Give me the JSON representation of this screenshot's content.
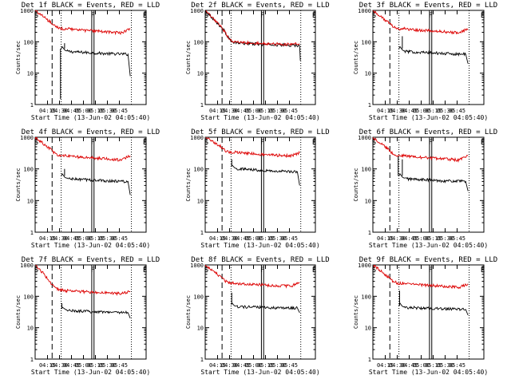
{
  "figure": {
    "background": "#ffffff",
    "axis_color": "#000000",
    "events_color": "#000000",
    "lld_color": "#dd0000"
  },
  "chart_data": [
    {
      "type": "line",
      "title": "Det 1f BLACK = Events, RED = LLD",
      "xlabel": "Start Time (13-Jun-02 04:05:40)",
      "ylabel": "Counts/sec",
      "x_ticks": [
        "04:15",
        "04:30",
        "04:45",
        "05:00",
        "05:15",
        "05:30",
        "05:45"
      ],
      "y_ticks": [
        "1",
        "10",
        "100",
        "1000"
      ],
      "xlim_min": [
        4,
        53
      ],
      "ylim": [
        1,
        1000
      ],
      "yscale": "log",
      "markers": [
        "S",
        "F",
        "E"
      ],
      "markers_min": [
        4.5,
        29.5,
        52.5
      ],
      "dashed_line_min": 11.5,
      "dotted_lines_min": [
        15.5,
        46.5,
        70
      ],
      "solid_lines_min": [
        29,
        30
      ],
      "series": [
        {
          "name": "Events",
          "color": "#000000",
          "x": [
            15.5,
            16,
            17,
            18,
            20,
            25,
            35,
            45,
            46
          ],
          "y": [
            60,
            70,
            55,
            50,
            48,
            46,
            42,
            40,
            8
          ],
          "spikes": [
            {
              "x": 15.2,
              "y": 1.5
            },
            {
              "x": 17,
              "y": 90
            }
          ]
        },
        {
          "name": "LLD",
          "color": "#dd0000",
          "x": [
            4,
            8,
            11,
            13,
            15,
            18,
            25,
            35,
            42,
            46
          ],
          "y": [
            1000,
            600,
            400,
            300,
            260,
            260,
            230,
            210,
            190,
            260
          ]
        }
      ]
    },
    {
      "type": "line",
      "title": "Det 2f BLACK = Events, RED = LLD",
      "xlabel": "Start Time (13-Jun-02 04:05:40)",
      "ylabel": "Counts/sec",
      "x_ticks": [
        "04:15",
        "04:30",
        "04:45",
        "05:00",
        "05:15",
        "05:30",
        "05:45"
      ],
      "y_ticks": [
        "1",
        "10",
        "100",
        "1000"
      ],
      "xlim_min": [
        4,
        53
      ],
      "ylim": [
        1,
        1000
      ],
      "yscale": "log",
      "markers": [
        "S",
        "F",
        "E"
      ],
      "markers_min": [
        4.5,
        29.5,
        52.5
      ],
      "dashed_line_min": 11.5,
      "dotted_lines_min": [
        15.5,
        46.5,
        70
      ],
      "solid_lines_min": [
        29,
        30
      ],
      "series": [
        {
          "name": "Events",
          "color": "#000000",
          "x": [
            4,
            8,
            12,
            14,
            16,
            20,
            30,
            40,
            46,
            46.3
          ],
          "y": [
            1000,
            500,
            250,
            150,
            95,
            90,
            82,
            78,
            75,
            25
          ],
          "spikes": []
        },
        {
          "name": "LLD",
          "color": "#dd0000",
          "x": [
            4,
            8,
            12,
            14,
            16,
            20,
            30,
            40,
            46
          ],
          "y": [
            1000,
            500,
            250,
            150,
            100,
            95,
            88,
            82,
            85
          ]
        }
      ]
    },
    {
      "type": "line",
      "title": "Det 3f BLACK = Events, RED = LLD",
      "xlabel": "Start Time (13-Jun-02 04:05:40)",
      "ylabel": "Counts/sec",
      "x_ticks": [
        "04:15",
        "04:30",
        "04:45",
        "05:00",
        "05:15",
        "05:30",
        "05:45"
      ],
      "y_ticks": [
        "1",
        "10",
        "100",
        "1000"
      ],
      "xlim_min": [
        4,
        53
      ],
      "ylim": [
        1,
        1000
      ],
      "yscale": "log",
      "markers": [
        "S",
        "F",
        "E"
      ],
      "markers_min": [
        4.5,
        29.5,
        52.5
      ],
      "dashed_line_min": 11.5,
      "dotted_lines_min": [
        15.5,
        46.5,
        70
      ],
      "solid_lines_min": [
        29,
        30
      ],
      "series": [
        {
          "name": "Events",
          "color": "#000000",
          "x": [
            15.5,
            16,
            17,
            18,
            20,
            25,
            35,
            45,
            46
          ],
          "y": [
            60,
            70,
            55,
            50,
            48,
            46,
            42,
            40,
            20
          ],
          "spikes": [
            {
              "x": 17,
              "y": 150
            }
          ]
        },
        {
          "name": "LLD",
          "color": "#dd0000",
          "x": [
            4,
            8,
            11,
            13,
            15,
            18,
            25,
            35,
            42,
            46
          ],
          "y": [
            1000,
            600,
            400,
            300,
            260,
            260,
            230,
            210,
            190,
            260
          ]
        }
      ]
    },
    {
      "type": "line",
      "title": "Det 4f BLACK = Events, RED = LLD",
      "xlabel": "Start Time (13-Jun-02 04:05:40)",
      "ylabel": "Counts/sec",
      "x_ticks": [
        "04:15",
        "04:30",
        "04:45",
        "05:00",
        "05:15",
        "05:30",
        "05:45"
      ],
      "y_ticks": [
        "1",
        "10",
        "100",
        "1000"
      ],
      "xlim_min": [
        4,
        53
      ],
      "ylim": [
        1,
        1000
      ],
      "yscale": "log",
      "markers": [
        "S",
        "F",
        "E"
      ],
      "markers_min": [
        4.5,
        29.5,
        52.5
      ],
      "dashed_line_min": 11.5,
      "dotted_lines_min": [
        15.5,
        46.5,
        70
      ],
      "solid_lines_min": [
        29,
        30
      ],
      "series": [
        {
          "name": "Events",
          "color": "#000000",
          "x": [
            15.5,
            16,
            17,
            18,
            20,
            25,
            35,
            45,
            46
          ],
          "y": [
            60,
            70,
            55,
            50,
            48,
            46,
            42,
            40,
            15
          ],
          "spikes": [
            {
              "x": 17,
              "y": 100
            }
          ]
        },
        {
          "name": "LLD",
          "color": "#dd0000",
          "x": [
            4,
            8,
            11,
            13,
            15,
            18,
            25,
            35,
            42,
            46
          ],
          "y": [
            1000,
            600,
            400,
            300,
            260,
            260,
            230,
            210,
            190,
            260
          ]
        }
      ]
    },
    {
      "type": "line",
      "title": "Det 5f BLACK = Events, RED = LLD",
      "xlabel": "Start Time (13-Jun-02 04:05:40)",
      "ylabel": "Counts/sec",
      "x_ticks": [
        "04:15",
        "04:30",
        "04:45",
        "05:00",
        "05:15",
        "05:30",
        "05:45"
      ],
      "y_ticks": [
        "1",
        "10",
        "100",
        "1000"
      ],
      "xlim_min": [
        4,
        53
      ],
      "ylim": [
        1,
        1000
      ],
      "yscale": "log",
      "markers": [
        "S",
        "F",
        "E"
      ],
      "markers_min": [
        4.5,
        29.5,
        52.5
      ],
      "dashed_line_min": 11.5,
      "dotted_lines_min": [
        15.5,
        46.5,
        70
      ],
      "solid_lines_min": [
        29,
        30
      ],
      "series": [
        {
          "name": "Events",
          "color": "#000000",
          "x": [
            15.5,
            16,
            17,
            18,
            20,
            25,
            35,
            45,
            46
          ],
          "y": [
            120,
            130,
            110,
            100,
            100,
            95,
            85,
            80,
            30
          ],
          "spikes": [
            {
              "x": 15.8,
              "y": 200
            }
          ]
        },
        {
          "name": "LLD",
          "color": "#dd0000",
          "x": [
            4,
            8,
            11,
            13,
            15,
            18,
            25,
            35,
            42,
            46
          ],
          "y": [
            1000,
            700,
            500,
            380,
            340,
            340,
            300,
            270,
            260,
            320
          ]
        }
      ]
    },
    {
      "type": "line",
      "title": "Det 6f BLACK = Events, RED = LLD",
      "xlabel": "Start Time (13-Jun-02 04:05:40)",
      "ylabel": "Counts/sec",
      "x_ticks": [
        "04:15",
        "04:30",
        "04:45",
        "05:00",
        "05:15",
        "05:30",
        "05:45"
      ],
      "y_ticks": [
        "1",
        "10",
        "100",
        "1000"
      ],
      "xlim_min": [
        4,
        53
      ],
      "ylim": [
        1,
        1000
      ],
      "yscale": "log",
      "markers": [
        "S",
        "F",
        "E"
      ],
      "markers_min": [
        4.5,
        29.5,
        52.5
      ],
      "dashed_line_min": 11.5,
      "dotted_lines_min": [
        15.5,
        46.5,
        70
      ],
      "solid_lines_min": [
        29,
        30
      ],
      "series": [
        {
          "name": "Events",
          "color": "#000000",
          "x": [
            15.5,
            16,
            17,
            18,
            20,
            25,
            35,
            45,
            46
          ],
          "y": [
            60,
            70,
            55,
            50,
            48,
            46,
            42,
            40,
            20
          ],
          "spikes": [
            {
              "x": 15.2,
              "y": 250
            },
            {
              "x": 17,
              "y": 200
            }
          ]
        },
        {
          "name": "LLD",
          "color": "#dd0000",
          "x": [
            4,
            8,
            11,
            13,
            15,
            18,
            25,
            35,
            42,
            46
          ],
          "y": [
            1000,
            600,
            400,
            300,
            260,
            260,
            230,
            210,
            190,
            260
          ]
        }
      ]
    },
    {
      "type": "line",
      "title": "Det 7f BLACK = Events, RED = LLD",
      "xlabel": "Start Time (13-Jun-02 04:05:40)",
      "ylabel": "Counts/sec",
      "x_ticks": [
        "04:15",
        "04:30",
        "04:45",
        "05:00",
        "05:15",
        "05:30",
        "05:45"
      ],
      "y_ticks": [
        "1",
        "10",
        "100",
        "1000"
      ],
      "xlim_min": [
        4,
        53
      ],
      "ylim": [
        1,
        1000
      ],
      "yscale": "log",
      "markers": [
        "S",
        "F",
        "E"
      ],
      "markers_min": [
        4.5,
        29.5,
        52.5
      ],
      "dashed_line_min": 11.5,
      "dotted_lines_min": [
        15.5,
        46.5,
        70
      ],
      "solid_lines_min": [
        29,
        30
      ],
      "series": [
        {
          "name": "Events",
          "color": "#000000",
          "x": [
            15.5,
            16,
            17,
            18,
            20,
            25,
            35,
            45,
            46
          ],
          "y": [
            40,
            45,
            40,
            36,
            35,
            33,
            32,
            30,
            20
          ],
          "spikes": [
            {
              "x": 15.8,
              "y": 60
            }
          ]
        },
        {
          "name": "LLD",
          "color": "#dd0000",
          "x": [
            4,
            8,
            11,
            13,
            15,
            18,
            25,
            35,
            42,
            46
          ],
          "y": [
            1000,
            500,
            250,
            180,
            160,
            150,
            140,
            130,
            120,
            140
          ]
        }
      ]
    },
    {
      "type": "line",
      "title": "Det 8f BLACK = Events, RED = LLD",
      "xlabel": "Start Time (13-Jun-02 04:05:40)",
      "ylabel": "Counts/sec",
      "x_ticks": [
        "04:15",
        "04:30",
        "04:45",
        "05:00",
        "05:15",
        "05:30",
        "05:45"
      ],
      "y_ticks": [
        "1",
        "10",
        "100",
        "1000"
      ],
      "xlim_min": [
        4,
        53
      ],
      "ylim": [
        1,
        1000
      ],
      "yscale": "log",
      "markers": [
        "S",
        "F",
        "E"
      ],
      "markers_min": [
        4.5,
        29.5,
        52.5
      ],
      "dashed_line_min": 11.5,
      "dotted_lines_min": [
        15.5,
        46.5,
        70
      ],
      "solid_lines_min": [
        29,
        30
      ],
      "series": [
        {
          "name": "Events",
          "color": "#000000",
          "x": [
            15.5,
            16,
            17,
            18,
            20,
            25,
            35,
            45,
            46
          ],
          "y": [
            55,
            60,
            50,
            48,
            46,
            45,
            43,
            42,
            30
          ],
          "spikes": [
            {
              "x": 15.8,
              "y": 130
            }
          ]
        },
        {
          "name": "LLD",
          "color": "#dd0000",
          "x": [
            4,
            8,
            11,
            13,
            15,
            18,
            25,
            35,
            42,
            46
          ],
          "y": [
            1000,
            600,
            400,
            300,
            270,
            260,
            240,
            220,
            210,
            280
          ]
        }
      ]
    },
    {
      "type": "line",
      "title": "Det 9f BLACK = Events, RED = LLD",
      "xlabel": "Start Time (13-Jun-02 04:05:40)",
      "ylabel": "Counts/sec",
      "x_ticks": [
        "04:15",
        "04:30",
        "04:45",
        "05:00",
        "05:15",
        "05:30",
        "05:45"
      ],
      "y_ticks": [
        "1",
        "10",
        "100",
        "1000"
      ],
      "xlim_min": [
        4,
        53
      ],
      "ylim": [
        1,
        1000
      ],
      "yscale": "log",
      "markers": [
        "S",
        "F",
        "E"
      ],
      "markers_min": [
        4.5,
        29.5,
        52.5
      ],
      "dashed_line_min": 11.5,
      "dotted_lines_min": [
        15.5,
        46.5,
        70
      ],
      "solid_lines_min": [
        29,
        30
      ],
      "series": [
        {
          "name": "Events",
          "color": "#000000",
          "x": [
            15.5,
            16,
            17,
            18,
            20,
            25,
            35,
            45,
            46
          ],
          "y": [
            50,
            60,
            48,
            45,
            44,
            42,
            40,
            38,
            25
          ],
          "spikes": [
            {
              "x": 15.8,
              "y": 150
            }
          ]
        },
        {
          "name": "LLD",
          "color": "#dd0000",
          "x": [
            4,
            8,
            11,
            13,
            15,
            18,
            25,
            35,
            42,
            46
          ],
          "y": [
            1000,
            600,
            400,
            300,
            260,
            260,
            230,
            210,
            190,
            250
          ]
        }
      ]
    }
  ]
}
